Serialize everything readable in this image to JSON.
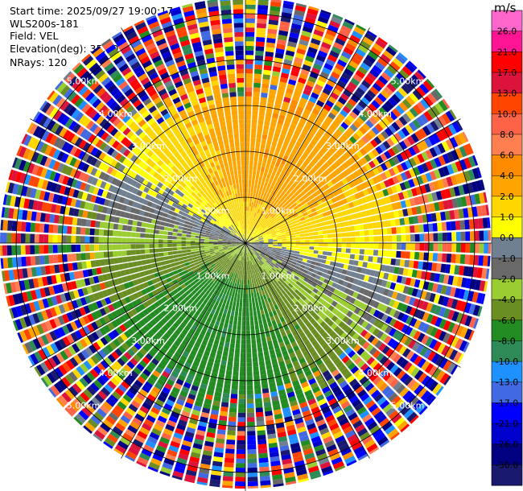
{
  "header": {
    "lines": [
      "Start time: 2025/09/27 19:00:17",
      "WLS200s-181",
      "Field: VEL",
      "Elevation(deg): 35.00",
      "NRays: 120"
    ]
  },
  "colorbar": {
    "unit": "m/s",
    "ticks": [
      "26.0",
      "21.0",
      "17.0",
      "13.0",
      "10.0",
      "8.0",
      "6.0",
      "4.0",
      "2.0",
      "1.0",
      "0.0",
      "-1.0",
      "-2.0",
      "-4.0",
      "-6.0",
      "-8.0",
      "-10.0",
      "-13.0",
      "-17.0",
      "-21.0",
      "-26.0",
      "-30.0"
    ],
    "colors": [
      "#ff66cc",
      "#ff1493",
      "#ff0000",
      "#dc143c",
      "#ff4500",
      "#ff6347",
      "#ff7f50",
      "#ff8c00",
      "#ffa500",
      "#ffd700",
      "#ffff00",
      "#708090",
      "#696969",
      "#9acd32",
      "#6b8e23",
      "#228b22",
      "#2e8b57",
      "#1e90ff",
      "#4169e1",
      "#0000ff",
      "#0000cd",
      "#000080",
      "#191970"
    ]
  },
  "chart_data": {
    "type": "ppi",
    "field": "VEL",
    "site": "WLS200s-181",
    "elevation_deg": 35.0,
    "n_rays": 120,
    "ring_labels_km": [
      "1.00km",
      "2.00km",
      "3.00km",
      "4.00km",
      "5.00km"
    ],
    "ring_km": [
      1,
      2,
      3,
      4,
      5
    ],
    "max_range_km": 5.35,
    "wind_toward_deg": 20,
    "wind_peak_ms": 5.5,
    "clean_range_km": 3.2,
    "noise_range_km": 3.7
  }
}
